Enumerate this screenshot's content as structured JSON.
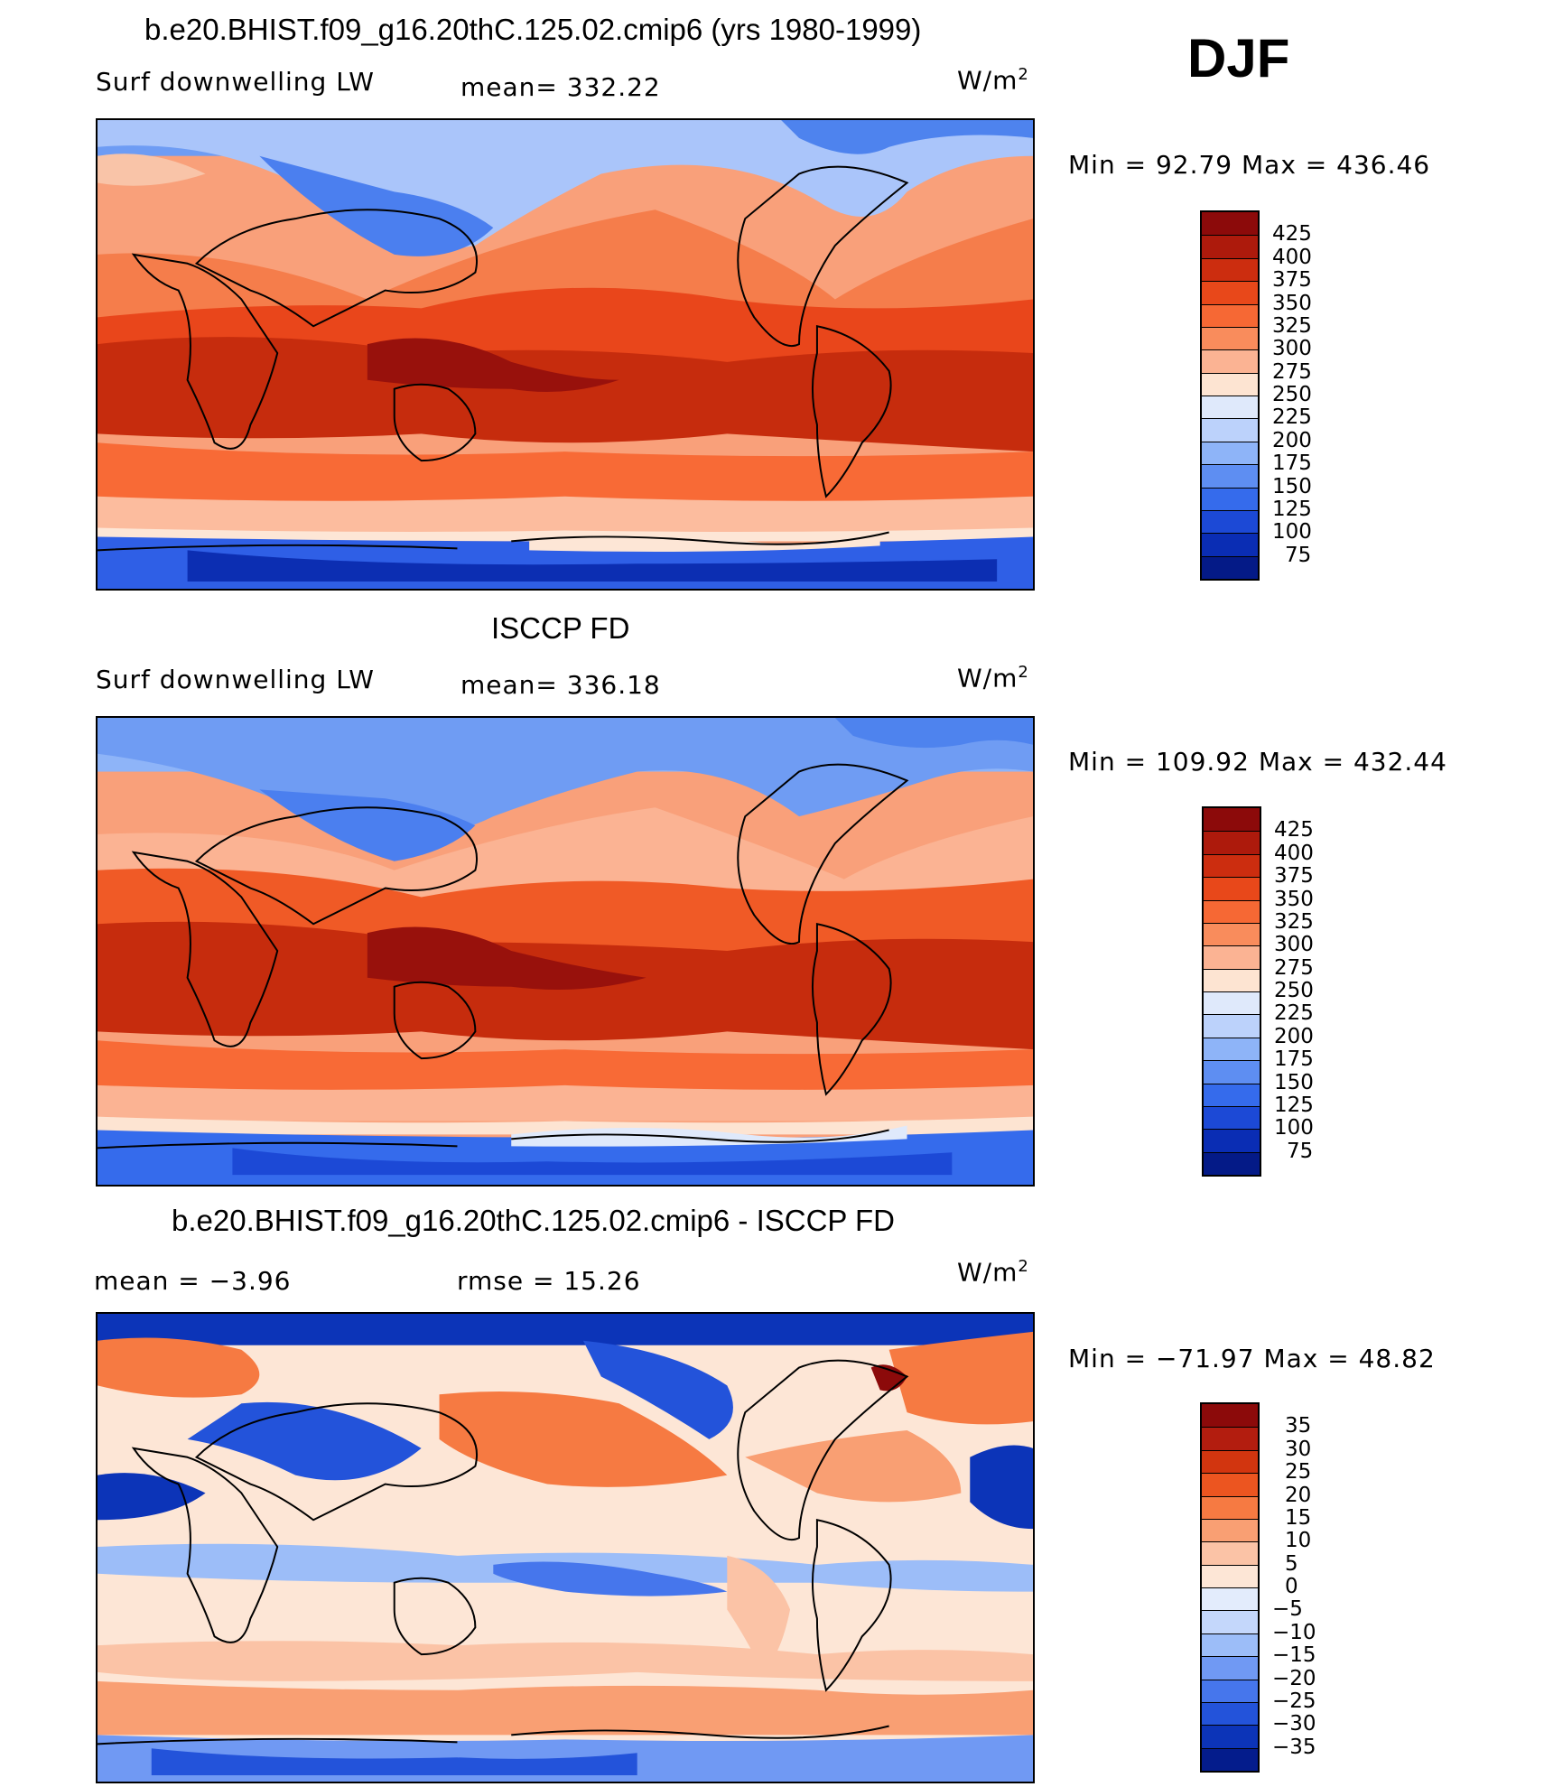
{
  "season": "DJF",
  "panels": [
    {
      "id": "model",
      "title": "b.e20.BHIST.f09_g16.20thC.125.02.cmip6 (yrs 1980-1999)",
      "variable": "Surf downwelling LW",
      "stat1": "mean= 332.22",
      "units": "W/m",
      "units_sup": "2",
      "minmax": "Min =   92.79 Max = 436.46",
      "levels": [
        "425",
        "400",
        "375",
        "350",
        "325",
        "300",
        "275",
        "250",
        "225",
        "200",
        "175",
        "150",
        "125",
        "100",
        "75"
      ],
      "map_icon": "world-map-model-field"
    },
    {
      "id": "obs",
      "title": "ISCCP FD",
      "variable": "Surf downwelling LW",
      "stat1": "mean= 336.18",
      "units": "W/m",
      "units_sup": "2",
      "minmax": "Min = 109.92 Max = 432.44",
      "levels": [
        "425",
        "400",
        "375",
        "350",
        "325",
        "300",
        "275",
        "250",
        "225",
        "200",
        "175",
        "150",
        "125",
        "100",
        "75"
      ],
      "map_icon": "world-map-observed-field"
    },
    {
      "id": "diff",
      "title": "b.e20.BHIST.f09_g16.20thC.125.02.cmip6 - ISCCP FD",
      "stat1": "mean =   −3.96",
      "stat2": "rmse =   15.26",
      "units": "W/m",
      "units_sup": "2",
      "minmax": "Min = −71.97 Max =   48.82",
      "levels": [
        "35",
        "30",
        "25",
        "20",
        "15",
        "10",
        "5",
        "0",
        "−5",
        "−10",
        "−15",
        "−20",
        "−25",
        "−30",
        "−35"
      ],
      "map_icon": "world-map-difference-field"
    }
  ],
  "colorbar_abs": [
    "#8c0a0a",
    "#ad1a0c",
    "#cc2d0f",
    "#e8481a",
    "#f66834",
    "#f98c5c",
    "#fbb393",
    "#fde4d2",
    "#dfe9fb",
    "#bcd2fb",
    "#8eb4f8",
    "#5e8ef2",
    "#356bec",
    "#1c49d6",
    "#0a2db4",
    "#041a87"
  ],
  "colorbar_diff": [
    "#8c0a0a",
    "#b31d0f",
    "#d2350f",
    "#ec5520",
    "#f67a42",
    "#f99f73",
    "#fbc3a6",
    "#fde6d6",
    "#e3ecfc",
    "#c4d7fb",
    "#9cbdf8",
    "#7099f3",
    "#4676ec",
    "#2353da",
    "#0c34b8",
    "#041c8c"
  ]
}
